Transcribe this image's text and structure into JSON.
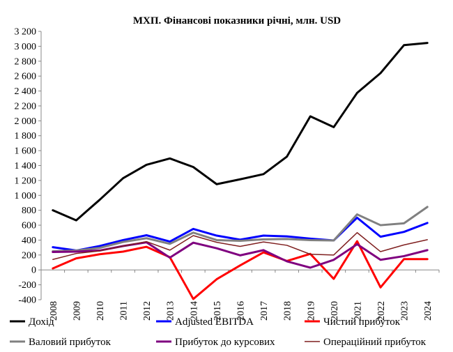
{
  "chart_data": {
    "type": "line",
    "title": "МХП. Фінансові показники річні, млн. USD",
    "xlabel": "",
    "ylabel": "",
    "x": [
      "2008",
      "2009",
      "2010",
      "2011",
      "2012",
      "2013",
      "2014",
      "2015",
      "2016",
      "2017",
      "2018",
      "2019",
      "2020",
      "2021",
      "2022",
      "2023",
      "2024"
    ],
    "ylim": [
      -400,
      3200
    ],
    "yticks": [
      -400,
      -200,
      0,
      200,
      400,
      600,
      800,
      1000,
      1200,
      1400,
      1600,
      1800,
      2000,
      2200,
      2400,
      2600,
      2800,
      3000,
      3200
    ],
    "ytick_labels": [
      "-400",
      "-200",
      "0",
      "200",
      "400",
      "600",
      "800",
      "1 000",
      "1 200",
      "1 400",
      "1 600",
      "1 800",
      "2 000",
      "2 200",
      "2 400",
      "2 600",
      "2 800",
      "3 000",
      "3 200"
    ],
    "grid": false,
    "legend_position": "bottom",
    "series": [
      {
        "name": "Дохід",
        "color": "#000000",
        "width": 3,
        "values": [
          800,
          665,
          940,
          1230,
          1410,
          1495,
          1380,
          1150,
          1215,
          1285,
          1520,
          2060,
          1915,
          2375,
          2640,
          3015,
          3045
        ]
      },
      {
        "name": "Adjusted EBITDA",
        "color": "#0000ff",
        "width": 3,
        "values": [
          305,
          260,
          320,
          400,
          465,
          380,
          550,
          460,
          405,
          460,
          450,
          420,
          395,
          700,
          445,
          510,
          630
        ]
      },
      {
        "name": "Чистий прибуток",
        "color": "#ff0000",
        "width": 3,
        "values": [
          20,
          155,
          210,
          245,
          310,
          170,
          -390,
          -125,
          60,
          235,
          120,
          215,
          -120,
          385,
          -235,
          145,
          145
        ]
      },
      {
        "name": "Валовий прибуток",
        "color": "#808080",
        "width": 3,
        "values": [
          250,
          260,
          295,
          375,
          425,
          350,
          500,
          400,
          390,
          410,
          415,
          400,
          395,
          745,
          600,
          625,
          845
        ]
      },
      {
        "name": "Прибуток до курсових",
        "color": "#7f007f",
        "width": 3,
        "values": [
          240,
          245,
          260,
          320,
          370,
          165,
          365,
          290,
          195,
          265,
          115,
          30,
          135,
          345,
          135,
          185,
          265
        ]
      },
      {
        "name": "Операційний прибуток",
        "color": "#7f1f1f",
        "width": 1.5,
        "values": [
          140,
          220,
          255,
          320,
          380,
          265,
          460,
          370,
          315,
          375,
          330,
          210,
          200,
          500,
          245,
          335,
          405
        ]
      }
    ]
  }
}
